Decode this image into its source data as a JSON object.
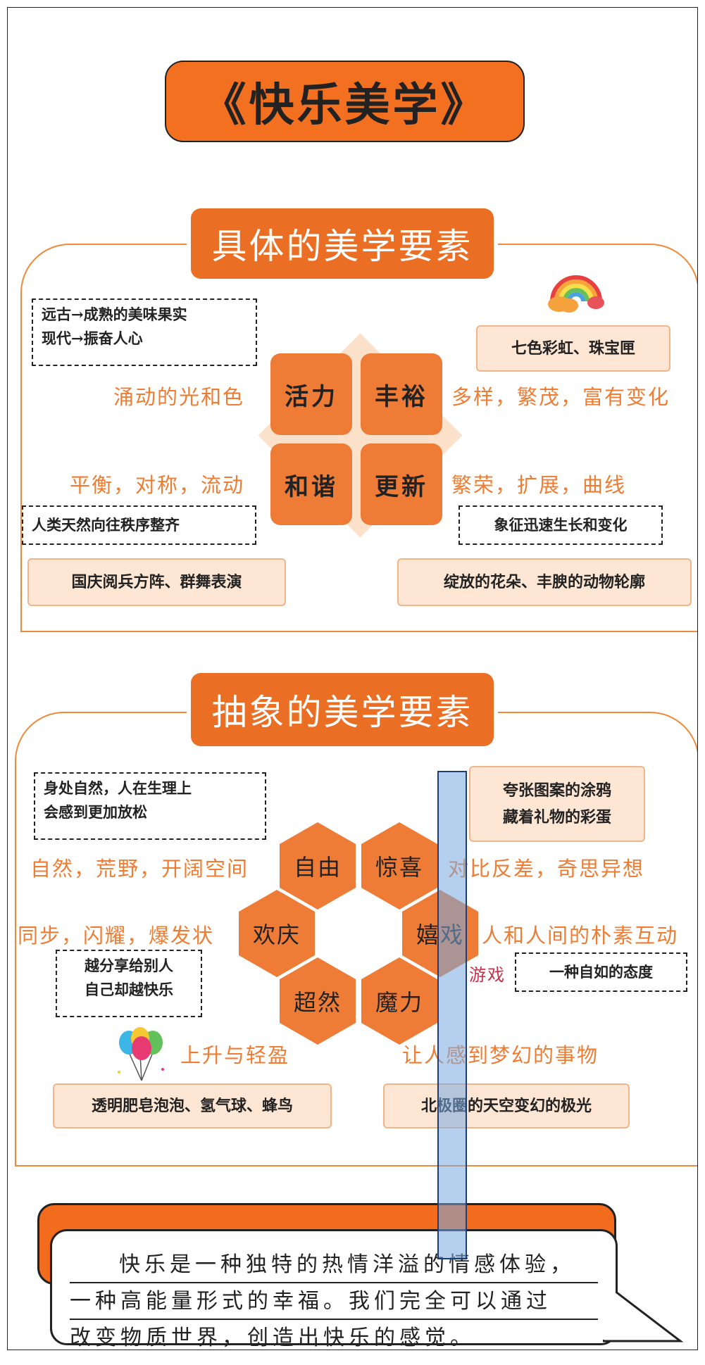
{
  "title": "《快乐美学》",
  "concrete": {
    "heading": "具体的美学要素",
    "note_top_left": [
      "远古→成熟的美味果实",
      "现代→振奋人心"
    ],
    "box_top_right": "七色彩虹、珠宝匣",
    "label_left_top": "涌动的光和色",
    "label_right_top": "多样，繁茂，富有变化",
    "label_left_bottom": "平衡，对称，流动",
    "label_right_bottom": "繁荣，扩展，曲线",
    "tiles": [
      "活力",
      "丰裕",
      "和谐",
      "更新"
    ],
    "note_bottom_left": "人类天然向往秩序整齐",
    "note_bottom_right": "象征迅速生长和变化",
    "box_bottom_left": "国庆阅兵方阵、群舞表演",
    "box_bottom_right": "绽放的花朵、丰腴的动物轮廓",
    "icon": "rainbow-cloud-icon"
  },
  "abstract": {
    "heading": "抽象的美学要素",
    "note_top_left": [
      "身处自然，人在生理上",
      "会感到更加放松"
    ],
    "box_top_right": [
      "夸张图案的涂鸦",
      "藏着礼物的彩蛋"
    ],
    "label_left_top": "自然，荒野，开阔空间",
    "label_right_top": "对比反差，奇思异想",
    "label_left_mid": "同步，闪耀，爆发状",
    "label_right_mid": "人和人间的朴素互动",
    "hexes": [
      "自由",
      "惊喜",
      "欢庆",
      "嬉戏",
      "超然",
      "魔力"
    ],
    "note_left_bottom": [
      "越分享给别人",
      "自己却越快乐"
    ],
    "game_label": "游戏",
    "note_right_bottom": "一种自如的态度",
    "label_bottom_left": "上升与轻盈",
    "label_bottom_right": "让人感到梦幻的事物",
    "box_bottom_left": "透明肥皂泡泡、氢气球、蜂鸟",
    "box_bottom_right": "北极圈的天空变幻的极光",
    "icon": "balloons-icon"
  },
  "quote": [
    "快乐是一种独特的热情洋溢的情感体验，",
    "一种高能量形式的幸福。我们完全可以通过",
    "改变物质世界，创造出快乐的感觉。"
  ],
  "colors": {
    "accent": "#ee7b36",
    "title_bg": "#f37021",
    "peach": "#fde6d3",
    "highlight": "#78aae1"
  }
}
